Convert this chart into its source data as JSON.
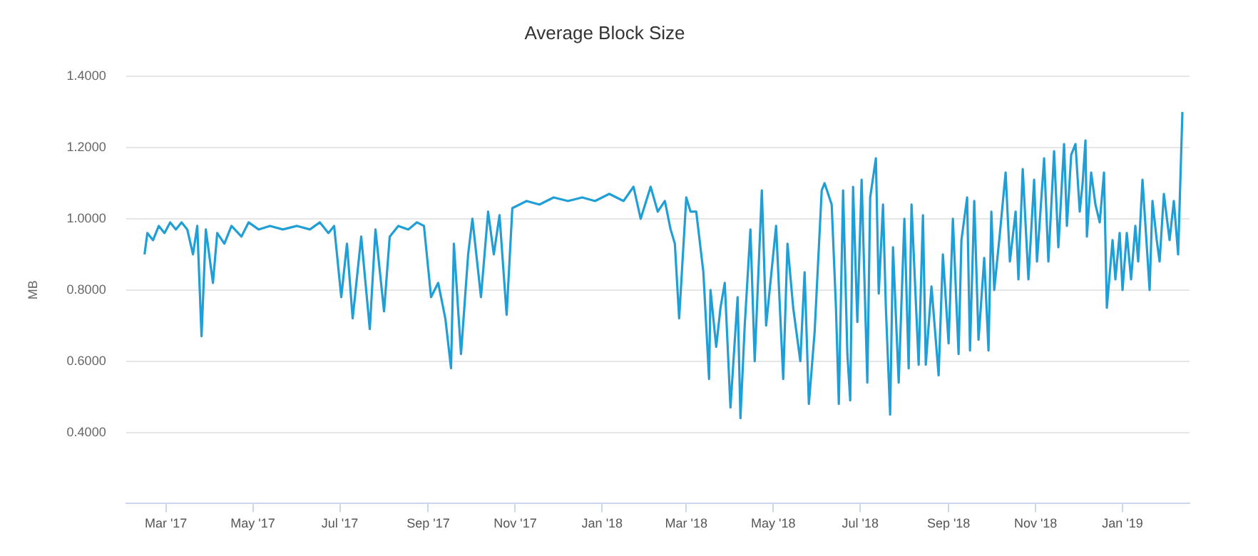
{
  "chart_data": {
    "type": "line",
    "title": "Average Block Size",
    "ylabel": "MB",
    "xlim": [
      "2017-02-01",
      "2019-02-17"
    ],
    "xticks": [
      {
        "value": "2017-03-01",
        "label": "Mar '17"
      },
      {
        "value": "2017-05-01",
        "label": "May '17"
      },
      {
        "value": "2017-07-01",
        "label": "Jul '17"
      },
      {
        "value": "2017-09-01",
        "label": "Sep '17"
      },
      {
        "value": "2017-11-01",
        "label": "Nov '17"
      },
      {
        "value": "2018-01-01",
        "label": "Jan '18"
      },
      {
        "value": "2018-03-01",
        "label": "Mar '18"
      },
      {
        "value": "2018-05-01",
        "label": "May '18"
      },
      {
        "value": "2018-07-01",
        "label": "Jul '18"
      },
      {
        "value": "2018-09-01",
        "label": "Sep '18"
      },
      {
        "value": "2018-11-01",
        "label": "Nov '18"
      },
      {
        "value": "2019-01-01",
        "label": "Jan '19"
      }
    ],
    "ylim": [
      0.2,
      1.4
    ],
    "yticks": [
      {
        "value": 0.4,
        "label": "0.4000"
      },
      {
        "value": 0.6,
        "label": "0.6000"
      },
      {
        "value": 0.8,
        "label": "0.8000"
      },
      {
        "value": 1.0,
        "label": "1.0000"
      },
      {
        "value": 1.2,
        "label": "1.2000"
      },
      {
        "value": 1.4,
        "label": "1.4000"
      }
    ],
    "grid": "y",
    "legend": false,
    "marker": "none",
    "line_style": "solid",
    "x": [
      "2017-02-14",
      "2017-02-16",
      "2017-02-20",
      "2017-02-24",
      "2017-02-28",
      "2017-03-04",
      "2017-03-08",
      "2017-03-12",
      "2017-03-16",
      "2017-03-20",
      "2017-03-23",
      "2017-03-26",
      "2017-03-29",
      "2017-04-03",
      "2017-04-06",
      "2017-04-11",
      "2017-04-16",
      "2017-04-23",
      "2017-04-28",
      "2017-05-05",
      "2017-05-13",
      "2017-05-22",
      "2017-06-01",
      "2017-06-10",
      "2017-06-17",
      "2017-06-23",
      "2017-06-27",
      "2017-07-02",
      "2017-07-06",
      "2017-07-10",
      "2017-07-16",
      "2017-07-22",
      "2017-07-26",
      "2017-08-01",
      "2017-08-05",
      "2017-08-11",
      "2017-08-18",
      "2017-08-24",
      "2017-08-29",
      "2017-09-03",
      "2017-09-08",
      "2017-09-13",
      "2017-09-17",
      "2017-09-19",
      "2017-09-24",
      "2017-09-29",
      "2017-10-02",
      "2017-10-08",
      "2017-10-13",
      "2017-10-17",
      "2017-10-21",
      "2017-10-26",
      "2017-10-30",
      "2017-11-09",
      "2017-11-18",
      "2017-11-28",
      "2017-12-08",
      "2017-12-18",
      "2017-12-27",
      "2018-01-06",
      "2018-01-16",
      "2018-01-23",
      "2018-01-28",
      "2018-02-04",
      "2018-02-09",
      "2018-02-14",
      "2018-02-18",
      "2018-02-21",
      "2018-02-24",
      "2018-03-01",
      "2018-03-04",
      "2018-03-08",
      "2018-03-13",
      "2018-03-17",
      "2018-03-18",
      "2018-03-22",
      "2018-03-25",
      "2018-03-28",
      "2018-04-01",
      "2018-04-06",
      "2018-04-08",
      "2018-04-11",
      "2018-04-15",
      "2018-04-18",
      "2018-04-23",
      "2018-04-26",
      "2018-05-03",
      "2018-05-08",
      "2018-05-11",
      "2018-05-15",
      "2018-05-20",
      "2018-05-23",
      "2018-05-26",
      "2018-05-30",
      "2018-06-04",
      "2018-06-06",
      "2018-06-11",
      "2018-06-14",
      "2018-06-16",
      "2018-06-19",
      "2018-06-22",
      "2018-06-24",
      "2018-06-26",
      "2018-06-29",
      "2018-07-02",
      "2018-07-06",
      "2018-07-08",
      "2018-07-12",
      "2018-07-14",
      "2018-07-17",
      "2018-07-19",
      "2018-07-22",
      "2018-07-24",
      "2018-07-28",
      "2018-08-01",
      "2018-08-04",
      "2018-08-06",
      "2018-08-11",
      "2018-08-14",
      "2018-08-16",
      "2018-08-20",
      "2018-08-25",
      "2018-08-28",
      "2018-09-01",
      "2018-09-04",
      "2018-09-08",
      "2018-09-10",
      "2018-09-14",
      "2018-09-16",
      "2018-09-19",
      "2018-09-22",
      "2018-09-26",
      "2018-09-29",
      "2018-10-01",
      "2018-10-03",
      "2018-10-07",
      "2018-10-11",
      "2018-10-14",
      "2018-10-18",
      "2018-10-20",
      "2018-10-23",
      "2018-10-27",
      "2018-10-31",
      "2018-11-02",
      "2018-11-07",
      "2018-11-10",
      "2018-11-14",
      "2018-11-17",
      "2018-11-21",
      "2018-11-23",
      "2018-11-26",
      "2018-11-29",
      "2018-12-02",
      "2018-12-04",
      "2018-12-06",
      "2018-12-07",
      "2018-12-10",
      "2018-12-13",
      "2018-12-16",
      "2018-12-19",
      "2018-12-21",
      "2018-12-25",
      "2018-12-27",
      "2018-12-30",
      "2019-01-01",
      "2019-01-04",
      "2019-01-07",
      "2019-01-10",
      "2019-01-12",
      "2019-01-15",
      "2019-01-20",
      "2019-01-22",
      "2019-01-25",
      "2019-01-27",
      "2019-01-30",
      "2019-02-03",
      "2019-02-06",
      "2019-02-09",
      "2019-02-12"
    ],
    "series": [
      {
        "color": "#1f9fd6",
        "values": [
          0.9,
          0.96,
          0.94,
          0.98,
          0.96,
          0.99,
          0.97,
          0.99,
          0.97,
          0.9,
          0.98,
          0.67,
          0.97,
          0.82,
          0.96,
          0.93,
          0.98,
          0.95,
          0.99,
          0.97,
          0.98,
          0.97,
          0.98,
          0.97,
          0.99,
          0.96,
          0.98,
          0.78,
          0.93,
          0.72,
          0.95,
          0.69,
          0.97,
          0.74,
          0.95,
          0.98,
          0.97,
          0.99,
          0.98,
          0.78,
          0.82,
          0.72,
          0.58,
          0.93,
          0.62,
          0.9,
          1.0,
          0.78,
          1.02,
          0.9,
          1.01,
          0.73,
          1.03,
          1.05,
          1.04,
          1.06,
          1.05,
          1.06,
          1.05,
          1.07,
          1.05,
          1.09,
          1.0,
          1.09,
          1.02,
          1.05,
          0.97,
          0.93,
          0.72,
          1.06,
          1.02,
          1.02,
          0.85,
          0.55,
          0.8,
          0.64,
          0.75,
          0.82,
          0.47,
          0.78,
          0.44,
          0.7,
          0.97,
          0.6,
          1.08,
          0.7,
          0.98,
          0.55,
          0.93,
          0.75,
          0.6,
          0.85,
          0.48,
          0.68,
          1.08,
          1.1,
          1.04,
          0.75,
          0.48,
          1.08,
          0.62,
          0.49,
          1.09,
          0.71,
          1.11,
          0.54,
          1.06,
          1.17,
          0.79,
          1.04,
          0.75,
          0.45,
          0.92,
          0.54,
          1.0,
          0.58,
          1.04,
          0.59,
          1.01,
          0.59,
          0.81,
          0.56,
          0.9,
          0.65,
          1.0,
          0.62,
          0.94,
          1.06,
          0.63,
          1.05,
          0.66,
          0.89,
          0.63,
          1.02,
          0.8,
          0.96,
          1.13,
          0.88,
          1.02,
          0.83,
          1.14,
          0.83,
          1.11,
          0.88,
          1.17,
          0.88,
          1.19,
          0.92,
          1.21,
          0.98,
          1.18,
          1.21,
          1.02,
          1.1,
          1.22,
          0.95,
          1.13,
          1.04,
          0.99,
          1.13,
          0.75,
          0.94,
          0.83,
          0.96,
          0.8,
          0.96,
          0.83,
          0.98,
          0.88,
          1.11,
          0.8,
          1.05,
          0.94,
          0.88,
          1.07,
          0.94,
          1.05,
          0.9,
          1.3
        ]
      }
    ]
  }
}
